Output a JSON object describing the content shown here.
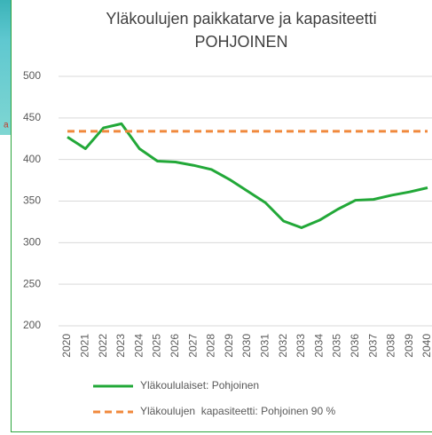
{
  "side_fragment": "a",
  "chart_data": {
    "type": "line",
    "title": "Yläkoulujen paikkatarve ja kapasiteetti",
    "subtitle": "POHJOINEN",
    "categories": [
      "2020",
      "2021",
      "2022",
      "2023",
      "2024",
      "2025",
      "2026",
      "2027",
      "2028",
      "2029",
      "2030",
      "2031",
      "2032",
      "2033",
      "2034",
      "2035",
      "2036",
      "2037",
      "2038",
      "2039",
      "2040"
    ],
    "series": [
      {
        "name": "Yläkoululaiset: Pohjoinen",
        "color": "#22a838",
        "dash": false,
        "values": [
          427,
          413,
          438,
          443,
          413,
          398,
          397,
          393,
          388,
          376,
          362,
          348,
          326,
          318,
          327,
          340,
          351,
          352,
          357,
          361,
          366
        ]
      },
      {
        "name": "Yläkoulujen  kapasiteetti: Pohjoinen 90 %",
        "color": "#f0893c",
        "dash": true,
        "values": [
          434,
          434,
          434,
          434,
          434,
          434,
          434,
          434,
          434,
          434,
          434,
          434,
          434,
          434,
          434,
          434,
          434,
          434,
          434,
          434,
          434
        ]
      }
    ],
    "ylim": [
      200,
      500
    ],
    "yticks": [
      200,
      250,
      300,
      350,
      400,
      450,
      500
    ],
    "grid": true
  }
}
